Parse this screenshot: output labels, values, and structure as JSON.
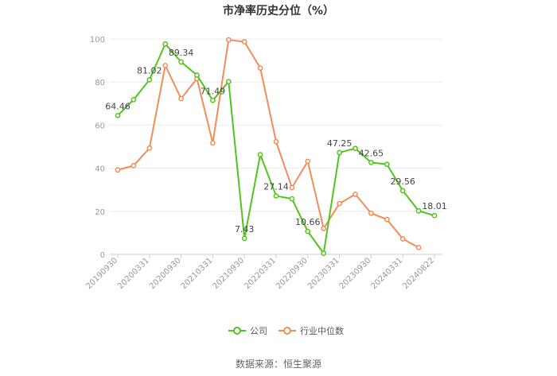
{
  "chart_data": {
    "type": "line",
    "title": "市净率历史分位（%）",
    "source": "数据来源：恒生聚源",
    "ylim": [
      0,
      100
    ],
    "yticks": [
      0,
      20,
      40,
      60,
      80,
      100
    ],
    "x": [
      "20190930",
      "20191231",
      "20200331",
      "20200630",
      "20200930",
      "20201231",
      "20210331",
      "20210630",
      "20210930",
      "20211231",
      "20220331",
      "20220630",
      "20220930",
      "20221231",
      "20230331",
      "20230630",
      "20230930",
      "20231231",
      "20240331",
      "20240630",
      "20240822"
    ],
    "xtick_labels": [
      "20190930",
      "20200331",
      "20200930",
      "20210331",
      "20210930",
      "20220331",
      "20220930",
      "20230331",
      "20230930",
      "20240331",
      "20240822"
    ],
    "xtick_index": [
      0,
      2,
      4,
      6,
      8,
      10,
      12,
      14,
      16,
      18,
      20
    ],
    "grid": true,
    "legend_position": "bottom",
    "series": [
      {
        "name": "公司",
        "color": "#52c41a",
        "values": [
          64.46,
          71.8,
          81.02,
          97.7,
          89.34,
          83.2,
          71.49,
          80.2,
          7.43,
          46.3,
          27.14,
          25.8,
          10.66,
          0.5,
          47.25,
          49.2,
          42.65,
          41.8,
          29.56,
          20.2,
          18.01
        ],
        "labels": {
          "0": "64.46",
          "2": "81.02",
          "4": "89.34",
          "6": "71.49",
          "8": "7.43",
          "10": "27.14",
          "12": "10.66",
          "14": "47.25",
          "16": "42.65",
          "18": "29.56",
          "20": "18.01"
        }
      },
      {
        "name": "行业中位数",
        "color": "#f28c5a",
        "values": [
          39.2,
          41.2,
          49.3,
          87.7,
          72.3,
          81.6,
          51.7,
          99.6,
          98.7,
          86.5,
          52.3,
          31.0,
          43.2,
          12.0,
          23.6,
          27.9,
          19.1,
          16.2,
          7.2,
          3.2,
          null
        ]
      }
    ]
  }
}
